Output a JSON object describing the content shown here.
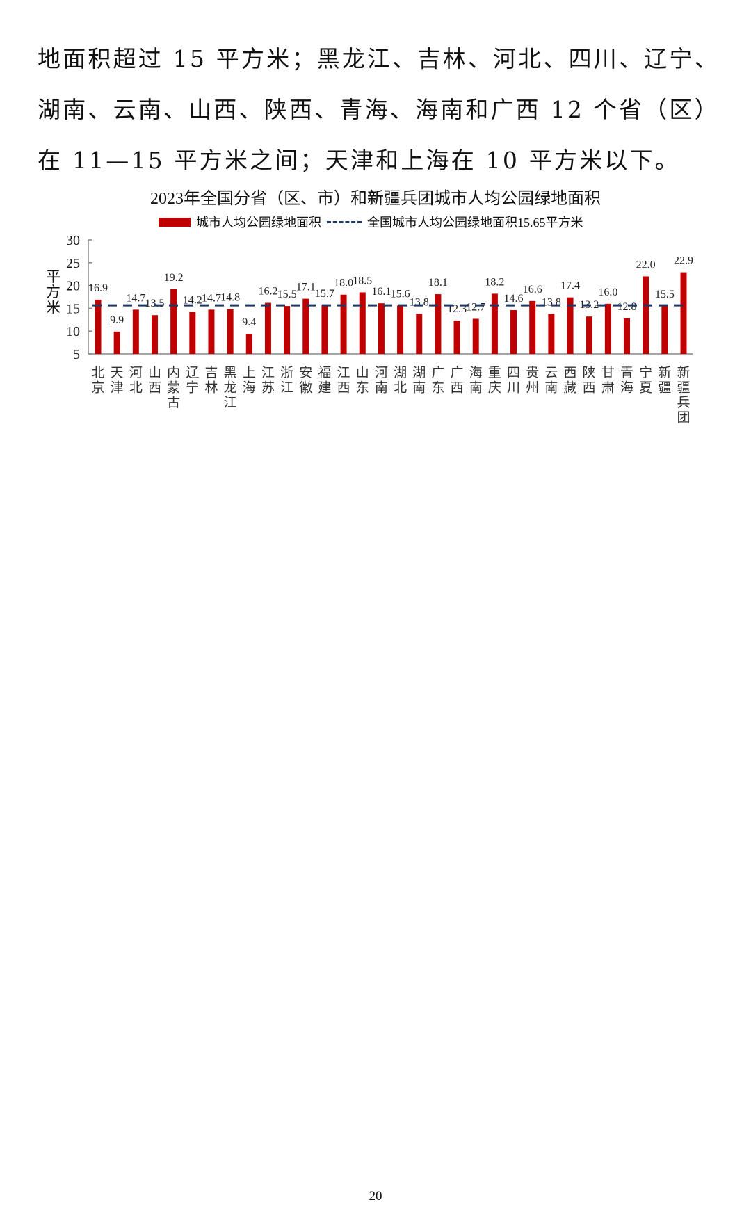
{
  "paragraph": {
    "lines": [
      "地面积超过 15 平方米；黑龙江、吉林、河北、四川、辽宁、",
      "湖南、云南、山西、陕西、青海、海南和广西 12 个省（区）",
      "在 11—15 平方米之间；天津和上海在 10 平方米以下。"
    ]
  },
  "chart_data": {
    "type": "bar",
    "title": "2023年全国分省（区、市）和新疆兵团城市人均公园绿地面积",
    "ylabel": "平方米",
    "ylim": [
      5,
      30
    ],
    "yticks": [
      5,
      10,
      15,
      20,
      25,
      30
    ],
    "legend": {
      "position": "top",
      "bar_label": "城市人均公园绿地面积",
      "line_label": "全国城市人均公园绿地面积15.65平方米"
    },
    "categories": [
      "北京",
      "天津",
      "河北",
      "山西",
      "内蒙古",
      "辽宁",
      "吉林",
      "黑龙江",
      "上海",
      "江苏",
      "浙江",
      "安徽",
      "福建",
      "江西",
      "山东",
      "河南",
      "湖北",
      "湖南",
      "广东",
      "广西",
      "海南",
      "重庆",
      "四川",
      "贵州",
      "云南",
      "西藏",
      "陕西",
      "甘肃",
      "青海",
      "宁夏",
      "新疆",
      "新疆兵团"
    ],
    "values": [
      16.9,
      9.9,
      14.7,
      13.5,
      19.2,
      14.2,
      14.7,
      14.8,
      9.4,
      16.2,
      15.5,
      17.1,
      15.7,
      18.0,
      18.5,
      16.1,
      15.6,
      13.8,
      18.1,
      12.3,
      12.7,
      18.2,
      14.6,
      16.6,
      13.8,
      17.4,
      13.2,
      16.0,
      12.8,
      22.0,
      15.5,
      22.9
    ],
    "reference_line": 15.65,
    "colors": {
      "bar": "#c00000",
      "reference_line": "#1f3864"
    }
  },
  "page_number": "20"
}
